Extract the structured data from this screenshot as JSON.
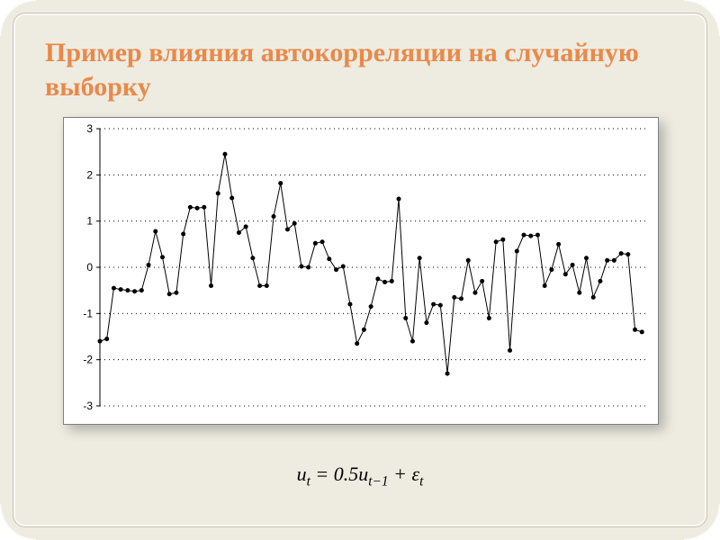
{
  "title": "Пример влияния автокорреляции на случайную выборку",
  "formula_html": "<i>u<sub>t</sub></i> = 0.5<i>u<sub>t−1</sub></i> + <i>ε<sub>t</sub></i>",
  "chart": {
    "type": "line",
    "background_color": "#ffffff",
    "border_color": "#808080",
    "axis_color": "#000000",
    "grid_color": "#000000",
    "grid_dash": "1 4",
    "line_color": "#000000",
    "line_width": 1,
    "marker": "circle",
    "marker_size": 2.5,
    "xlim": [
      0,
      79
    ],
    "ylim": [
      -3,
      3
    ],
    "ytick_step": 1,
    "yticks": [
      -3,
      -2,
      -1,
      0,
      1,
      2,
      3
    ],
    "label_fontsize": 12,
    "values": [
      -1.6,
      -1.55,
      -0.45,
      -0.48,
      -0.5,
      -0.52,
      -0.5,
      0.05,
      0.78,
      0.22,
      -0.58,
      -0.55,
      0.72,
      1.3,
      1.28,
      1.3,
      -0.4,
      1.6,
      2.45,
      1.5,
      0.75,
      0.88,
      0.2,
      -0.4,
      -0.4,
      1.1,
      1.82,
      0.82,
      0.95,
      0.02,
      0.0,
      0.52,
      0.55,
      0.18,
      -0.05,
      0.02,
      -0.8,
      -1.65,
      -1.35,
      -0.85,
      -0.25,
      -0.32,
      -0.3,
      1.48,
      -1.1,
      -1.6,
      0.2,
      -1.2,
      -0.8,
      -0.82,
      -2.3,
      -0.65,
      -0.68,
      0.15,
      -0.55,
      -0.3,
      -1.1,
      0.55,
      0.6,
      -1.8,
      0.35,
      0.7,
      0.68,
      0.7,
      -0.4,
      -0.05,
      0.5,
      -0.15,
      0.05,
      -0.55,
      0.2,
      -0.65,
      -0.3,
      0.15,
      0.15,
      0.3,
      0.28,
      -1.35,
      -1.4
    ]
  }
}
